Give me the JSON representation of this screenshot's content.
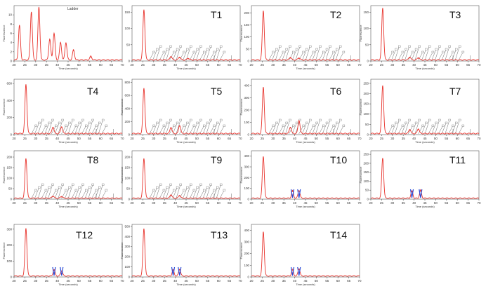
{
  "chart_data": [
    {
      "type": "line",
      "title": "",
      "small_title": "Ladder",
      "xlabel": "Time (seconds)",
      "ylabel": "Fluorescence",
      "xlim": [
        20,
        70
      ],
      "ylim": [
        0,
        12
      ],
      "xticks": [
        20,
        25,
        30,
        35,
        40,
        45,
        50,
        55,
        60,
        65,
        70
      ],
      "yticks": [
        0,
        2,
        4,
        6,
        8,
        10
      ],
      "series": [
        {
          "peaks": [
            [
              22.5,
              7.5
            ],
            [
              28,
              10.5
            ],
            [
              31.5,
              11.5
            ],
            [
              36.5,
              4.5
            ],
            [
              38.5,
              5.8
            ],
            [
              41.5,
              3.8
            ],
            [
              44,
              3.8
            ],
            [
              47.5,
              2.2
            ],
            [
              55.5,
              0.8
            ]
          ]
        }
      ],
      "callouts": false,
      "markers": []
    },
    {
      "type": "line",
      "title": "T1",
      "xlabel": "Time (seconds)",
      "ylabel": "",
      "xlim": [
        20,
        70
      ],
      "ylim": [
        0,
        170
      ],
      "xticks": [
        20,
        25,
        30,
        35,
        40,
        45,
        50,
        55,
        60,
        65,
        70
      ],
      "yticks": [
        0,
        50,
        100,
        150
      ],
      "series": [
        {
          "peaks": [
            [
              25.5,
              155
            ],
            [
              38,
              12
            ],
            [
              42,
              10
            ],
            [
              46,
              6
            ]
          ]
        }
      ],
      "callouts": true,
      "markers": []
    },
    {
      "type": "line",
      "title": "T2",
      "xlabel": "Time (seconds)",
      "ylabel": "Fluorescence",
      "xlim": [
        20,
        70
      ],
      "ylim": [
        0,
        230
      ],
      "xticks": [
        20,
        25,
        30,
        35,
        40,
        45,
        50,
        55,
        60,
        65,
        70
      ],
      "yticks": [
        0,
        50,
        100,
        150,
        200
      ],
      "series": [
        {
          "peaks": [
            [
              25.5,
              205
            ],
            [
              38,
              12
            ],
            [
              42,
              10
            ]
          ]
        }
      ],
      "callouts": true,
      "markers": []
    },
    {
      "type": "line",
      "title": "T3",
      "xlabel": "Time (seconds)",
      "ylabel": "Fluorescence",
      "xlim": [
        20,
        70
      ],
      "ylim": [
        0,
        170
      ],
      "xticks": [
        20,
        25,
        30,
        35,
        40,
        45,
        50,
        55,
        60,
        65,
        70
      ],
      "yticks": [
        0,
        50,
        100,
        150
      ],
      "series": [
        {
          "peaks": [
            [
              25.5,
              160
            ],
            [
              38,
              10
            ],
            [
              42,
              8
            ]
          ]
        }
      ],
      "callouts": true,
      "markers": []
    },
    {
      "type": "line",
      "title": "T4",
      "xlabel": "Time (seconds)",
      "ylabel": "Fluorescence",
      "xlim": [
        20,
        70
      ],
      "ylim": [
        0,
        650
      ],
      "xticks": [
        20,
        25,
        30,
        35,
        40,
        45,
        50,
        55,
        60,
        65,
        70
      ],
      "yticks": [
        0,
        200,
        400,
        600
      ],
      "series": [
        {
          "peaks": [
            [
              25.5,
              580
            ],
            [
              38,
              80
            ],
            [
              42,
              85
            ]
          ]
        }
      ],
      "callouts": true,
      "markers": []
    },
    {
      "type": "line",
      "title": "T5",
      "xlabel": "Time (seconds)",
      "ylabel": "Fluorescence",
      "xlim": [
        20,
        70
      ],
      "ylim": [
        0,
        850
      ],
      "xticks": [
        20,
        25,
        30,
        35,
        40,
        45,
        50,
        55,
        60,
        65,
        70
      ],
      "yticks": [
        0,
        200,
        400,
        600,
        800
      ],
      "series": [
        {
          "peaks": [
            [
              25.5,
              700
            ],
            [
              38,
              100
            ],
            [
              42,
              130
            ]
          ]
        }
      ],
      "callouts": true,
      "markers": []
    },
    {
      "type": "line",
      "title": "T6",
      "xlabel": "Time (seconds)",
      "ylabel": "Fluorescence",
      "xlim": [
        20,
        70
      ],
      "ylim": [
        0,
        450
      ],
      "xticks": [
        20,
        25,
        30,
        35,
        40,
        45,
        50,
        55,
        60,
        65,
        70
      ],
      "yticks": [
        0,
        100,
        200,
        300,
        400
      ],
      "series": [
        {
          "peaks": [
            [
              25.5,
              380
            ],
            [
              38,
              55
            ],
            [
              42,
              110
            ]
          ]
        }
      ],
      "callouts": true,
      "markers": []
    },
    {
      "type": "line",
      "title": "T7",
      "xlabel": "Time (seconds)",
      "ylabel": "Fluorescence",
      "xlim": [
        20,
        70
      ],
      "ylim": [
        0,
        270
      ],
      "xticks": [
        20,
        25,
        30,
        35,
        40,
        45,
        50,
        55,
        60,
        65,
        70
      ],
      "yticks": [
        0,
        50,
        100,
        150,
        200,
        250
      ],
      "series": [
        {
          "peaks": [
            [
              25.5,
              235
            ],
            [
              38,
              22
            ],
            [
              42,
              25
            ]
          ]
        }
      ],
      "callouts": true,
      "markers": []
    },
    {
      "type": "line",
      "title": "T8",
      "xlabel": "Time (seconds)",
      "ylabel": "Fluorescence",
      "xlim": [
        20,
        70
      ],
      "ylim": [
        0,
        230
      ],
      "xticks": [
        20,
        25,
        30,
        35,
        40,
        45,
        50,
        55,
        60,
        65,
        70
      ],
      "yticks": [
        0,
        50,
        100,
        150,
        200
      ],
      "series": [
        {
          "peaks": [
            [
              25.5,
              190
            ],
            [
              38,
              12
            ],
            [
              42,
              10
            ]
          ]
        }
      ],
      "callouts": true,
      "markers": []
    },
    {
      "type": "line",
      "title": "T9",
      "xlabel": "Time (seconds)",
      "ylabel": "Fluorescence",
      "xlim": [
        20,
        70
      ],
      "ylim": [
        0,
        230
      ],
      "xticks": [
        20,
        25,
        30,
        35,
        40,
        45,
        50,
        55,
        60,
        65,
        70
      ],
      "yticks": [
        0,
        50,
        100,
        150,
        200
      ],
      "series": [
        {
          "peaks": [
            [
              25.5,
              190
            ],
            [
              38,
              18
            ],
            [
              42,
              15
            ]
          ]
        }
      ],
      "callouts": true,
      "markers": []
    },
    {
      "type": "line",
      "title": "T10",
      "xlabel": "Time (seconds)",
      "ylabel": "Fluorescence",
      "xlim": [
        20,
        70
      ],
      "ylim": [
        0,
        450
      ],
      "xticks": [
        20,
        25,
        30,
        35,
        40,
        45,
        50,
        55,
        60,
        65,
        70
      ],
      "yticks": [
        0,
        100,
        200,
        300,
        400
      ],
      "series": [
        {
          "peaks": [
            [
              25.5,
              390
            ],
            [
              39,
              70
            ],
            [
              42,
              75
            ]
          ]
        }
      ],
      "callouts": false,
      "markers": [
        39,
        42
      ]
    },
    {
      "type": "line",
      "title": "T11",
      "xlabel": "Time (seconds)",
      "ylabel": "Fluorescence",
      "xlim": [
        20,
        70
      ],
      "ylim": [
        0,
        270
      ],
      "xticks": [
        20,
        25,
        30,
        35,
        40,
        45,
        50,
        55,
        60,
        65,
        70
      ],
      "yticks": [
        0,
        50,
        100,
        150,
        200,
        250
      ],
      "series": [
        {
          "peaks": [
            [
              25.5,
              225
            ],
            [
              39,
              40
            ],
            [
              43,
              45
            ]
          ]
        }
      ],
      "callouts": false,
      "markers": [
        39,
        43
      ]
    },
    {
      "type": "line",
      "title": "T12",
      "xlabel": "Time (seconds)",
      "ylabel": "Fluorescence",
      "xlim": [
        20,
        70
      ],
      "ylim": [
        0,
        330
      ],
      "xticks": [
        20,
        25,
        30,
        35,
        40,
        45,
        50,
        55,
        60,
        65,
        70
      ],
      "yticks": [
        0,
        100,
        200,
        300
      ],
      "series": [
        {
          "peaks": [
            [
              25.5,
              300
            ],
            [
              38.5,
              40
            ],
            [
              42,
              35
            ]
          ]
        }
      ],
      "callouts": false,
      "markers": [
        38.5,
        42
      ]
    },
    {
      "type": "line",
      "title": "T13",
      "xlabel": "Time (seconds)",
      "ylabel": "Fluorescence",
      "xlim": [
        20,
        70
      ],
      "ylim": [
        0,
        520
      ],
      "xticks": [
        20,
        25,
        30,
        35,
        40,
        45,
        50,
        55,
        60,
        65,
        70
      ],
      "yticks": [
        0,
        100,
        200,
        300,
        400,
        500
      ],
      "series": [
        {
          "peaks": [
            [
              25.5,
              470
            ],
            [
              39,
              60
            ],
            [
              42,
              70
            ]
          ]
        }
      ],
      "callouts": false,
      "markers": [
        39,
        42
      ]
    },
    {
      "type": "line",
      "title": "T14",
      "xlabel": "Time (seconds)",
      "ylabel": "Fluorescence",
      "xlim": [
        20,
        70
      ],
      "ylim": [
        0,
        450
      ],
      "xticks": [
        20,
        25,
        30,
        35,
        40,
        45,
        50,
        55,
        60,
        65,
        70
      ],
      "yticks": [
        0,
        100,
        200,
        300,
        400
      ],
      "series": [
        {
          "peaks": [
            [
              25.5,
              380
            ],
            [
              39,
              55
            ],
            [
              42,
              65
            ]
          ]
        }
      ],
      "callouts": false,
      "markers": [
        39,
        42
      ]
    }
  ]
}
